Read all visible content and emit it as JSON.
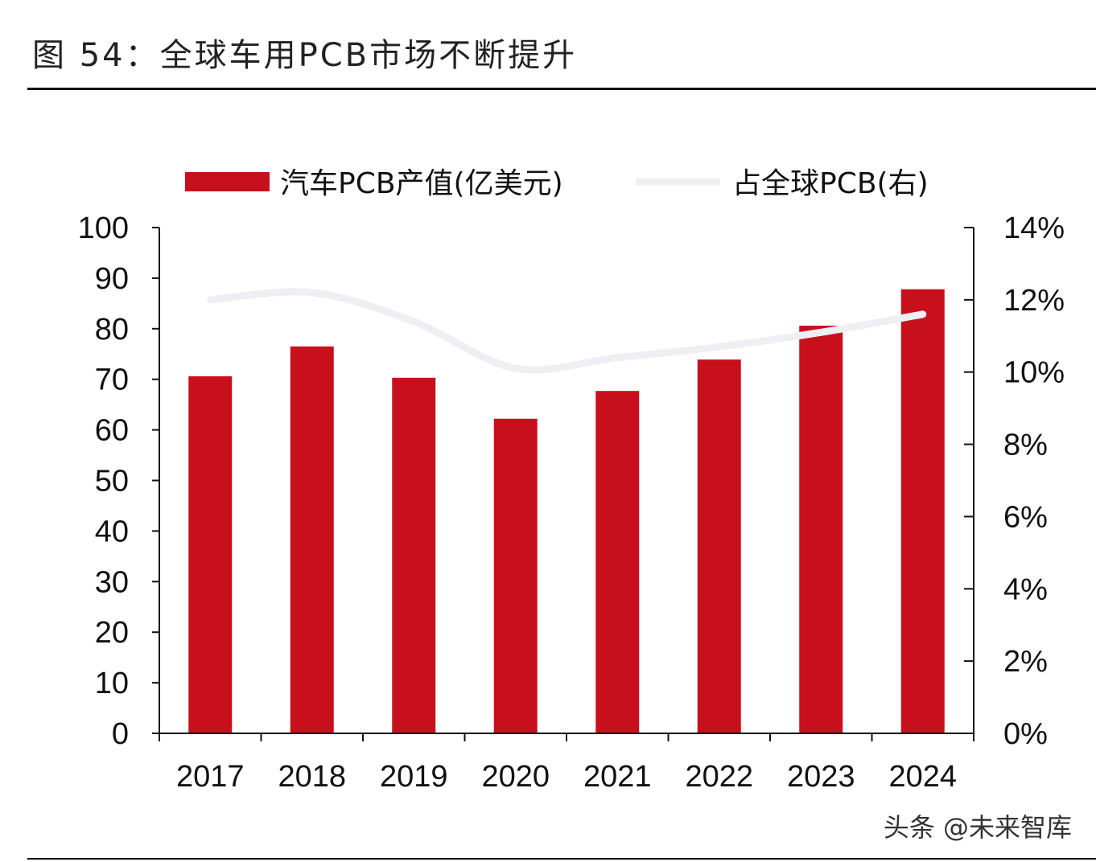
{
  "title": "图 54：全球车用PCB市场不断提升",
  "watermark": "头条 @未来智库",
  "chart_data": {
    "type": "bar",
    "categories": [
      "2017",
      "2018",
      "2019",
      "2020",
      "2021",
      "2022",
      "2023",
      "2024"
    ],
    "series": [
      {
        "name": "汽车PCB产值(亿美元)",
        "type": "bar",
        "axis": "left",
        "color": "#c8101c",
        "values": [
          70.6,
          76.5,
          70.3,
          62.2,
          67.7,
          73.9,
          80.6,
          87.8
        ]
      },
      {
        "name": "占全球PCB(右)",
        "type": "line",
        "axis": "right",
        "color": "#eeeff2",
        "values": [
          12.0,
          12.2,
          11.4,
          10.1,
          10.4,
          10.7,
          11.1,
          11.6
        ]
      }
    ],
    "y_left": {
      "range": [
        0,
        100
      ],
      "ticks": [
        "0",
        "10",
        "20",
        "30",
        "40",
        "50",
        "60",
        "70",
        "80",
        "90",
        "100"
      ]
    },
    "y_right": {
      "range": [
        0,
        14
      ],
      "ticks": [
        "0%",
        "2%",
        "4%",
        "6%",
        "8%",
        "10%",
        "12%",
        "14%"
      ]
    },
    "legend_position": "top",
    "grid": false
  }
}
